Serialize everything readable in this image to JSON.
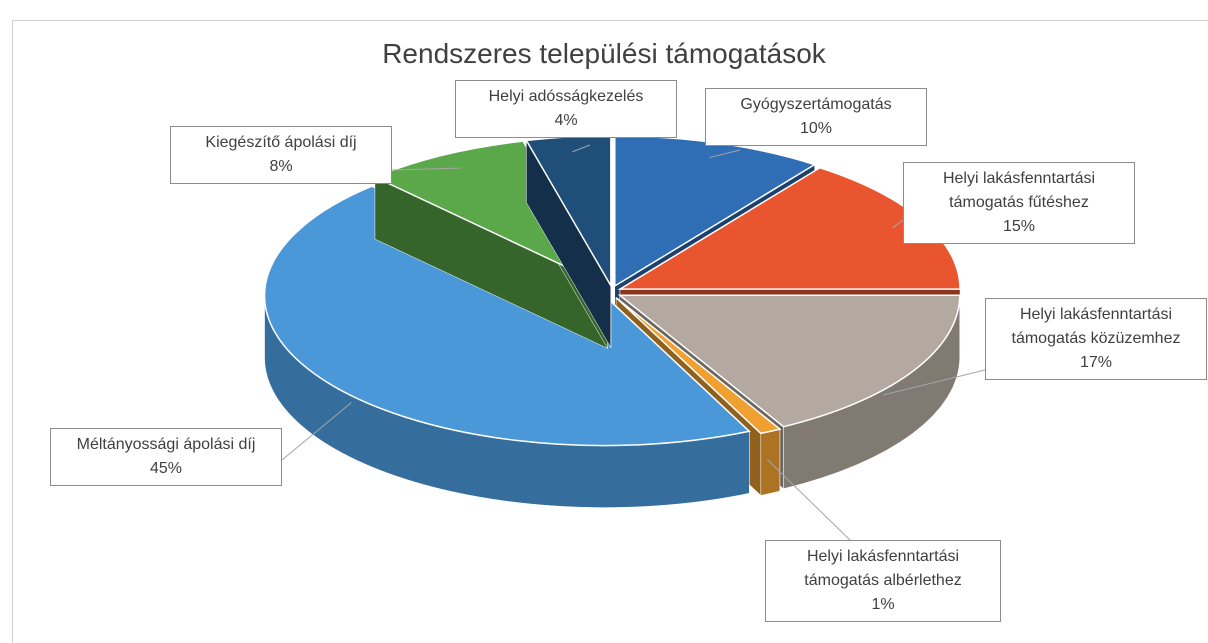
{
  "chart_data": {
    "type": "pie3d",
    "title": "Rendszeres települési támogatások",
    "categories": [
      "Gyógyszertámogatás",
      "Helyi lakásfenntartási támogatás fűtéshez",
      "Helyi lakásfenntartási támogatás közüzemhez",
      "Helyi lakásfenntartási támogatás albérlethez",
      "Méltányossági ápolási díj",
      "Kiegészítő ápolási díj",
      "Helyi adósságkezelés"
    ],
    "values": [
      10,
      15,
      17,
      1,
      45,
      8,
      4
    ],
    "value_labels": [
      "10%",
      "15%",
      "17%",
      "1%",
      "45%",
      "8%",
      "4%"
    ],
    "colors": [
      "#2f6db5",
      "#e8552f",
      "#b3a9a0",
      "#f0a030",
      "#4a98d8",
      "#5aa84a",
      "#1f4e79"
    ]
  }
}
